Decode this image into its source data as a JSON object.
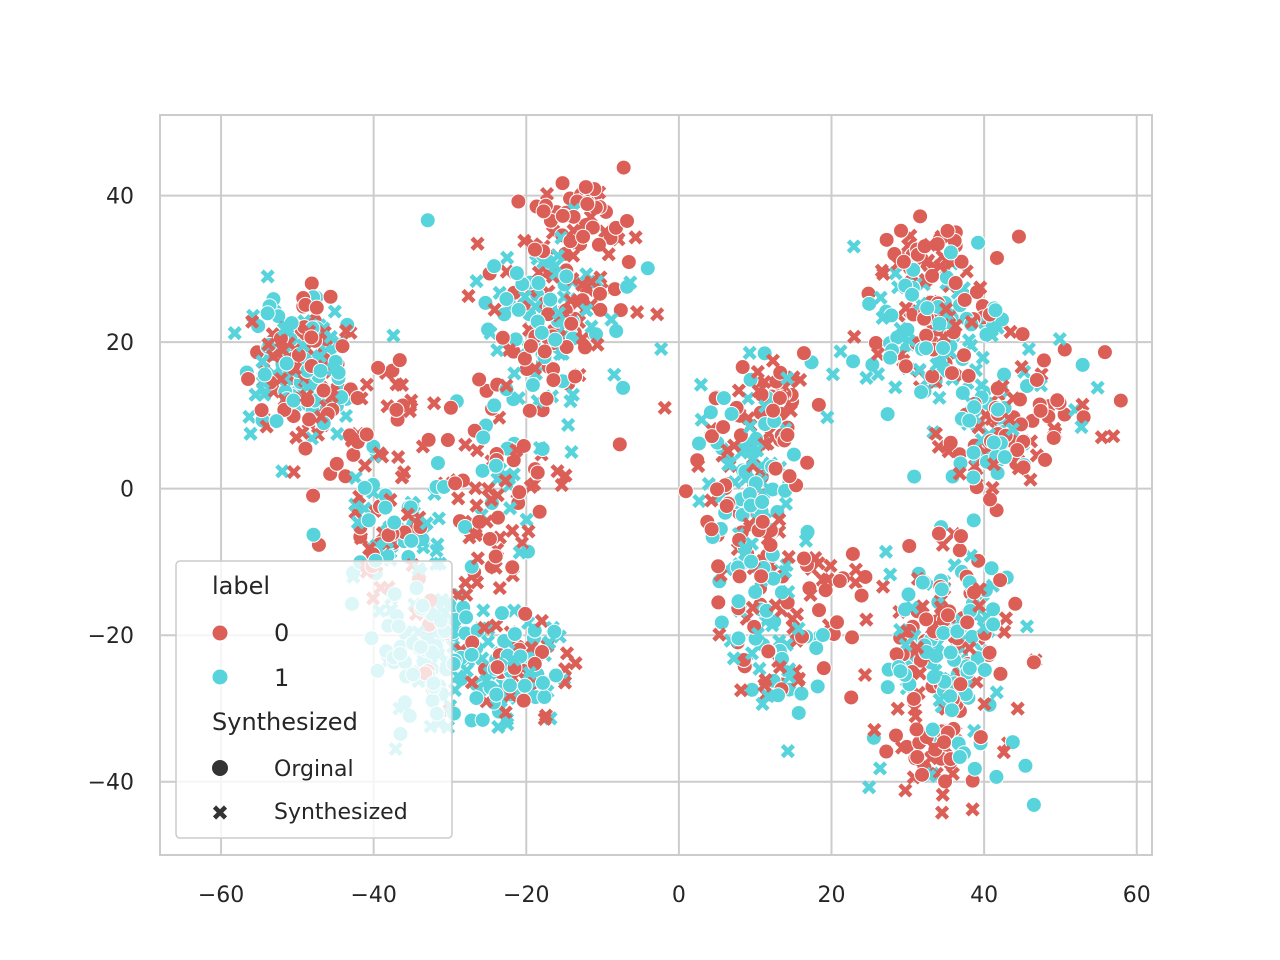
{
  "chart_data": {
    "type": "scatter",
    "title": "",
    "xlabel": "",
    "ylabel": "",
    "xlim": [
      -68,
      62
    ],
    "ylim": [
      -50,
      51
    ],
    "xticks": [
      -60,
      -40,
      -20,
      0,
      20,
      40,
      60
    ],
    "yticks": [
      -40,
      -20,
      0,
      20,
      40
    ],
    "xtick_labels": [
      "−60",
      "−40",
      "−20",
      "0",
      "20",
      "40",
      "60"
    ],
    "ytick_labels": [
      "−40",
      "−20",
      "0",
      "20",
      "40"
    ],
    "grid": true,
    "legend": {
      "placement": "lower-left",
      "hue_title": "label",
      "hue_entries": [
        {
          "label": "0",
          "color": "#db5f57"
        },
        {
          "label": "1",
          "color": "#57d3db"
        }
      ],
      "style_title": "Synthesized",
      "style_entries": [
        {
          "label": "Orginal",
          "marker": "circle"
        },
        {
          "label": "Synthesized",
          "marker": "x"
        }
      ]
    },
    "colors": {
      "0": "#db5f57",
      "1": "#57d3db"
    },
    "clusters": [
      {
        "cx": -50,
        "cy": 17,
        "sx": 3.2,
        "sy": 4.5,
        "n": 180,
        "p1": 0.6
      },
      {
        "cx": -42,
        "cy": 9,
        "sx": 5.0,
        "sy": 7.0,
        "n": 70,
        "p1": 0.2
      },
      {
        "cx": -38,
        "cy": -6,
        "sx": 4.0,
        "sy": 4.0,
        "n": 90,
        "p1": 0.6
      },
      {
        "cx": -33,
        "cy": -22,
        "sx": 3.5,
        "sy": 4.5,
        "n": 110,
        "p1": 0.9
      },
      {
        "cx": -22,
        "cy": -25,
        "sx": 4.0,
        "sy": 4.0,
        "n": 110,
        "p1": 0.65
      },
      {
        "cx": -16,
        "cy": 24,
        "sx": 5.0,
        "sy": 6.0,
        "n": 170,
        "p1": 0.55
      },
      {
        "cx": -12,
        "cy": 37,
        "sx": 3.0,
        "sy": 2.5,
        "n": 50,
        "p1": 0.05
      },
      {
        "cx": -22,
        "cy": 4,
        "sx": 4.0,
        "sy": 6.0,
        "n": 60,
        "p1": 0.2
      },
      {
        "cx": -27,
        "cy": -7,
        "sx": 4.0,
        "sy": 6.0,
        "n": 40,
        "p1": 0.2
      },
      {
        "cx": 9,
        "cy": -3,
        "sx": 3.5,
        "sy": 9.0,
        "n": 160,
        "p1": 0.55
      },
      {
        "cx": 14,
        "cy": -22,
        "sx": 3.0,
        "sy": 4.5,
        "n": 60,
        "p1": 0.5
      },
      {
        "cx": 12,
        "cy": 10,
        "sx": 3.0,
        "sy": 3.5,
        "n": 50,
        "p1": 0.3
      },
      {
        "cx": 33,
        "cy": 22,
        "sx": 5.0,
        "sy": 5.0,
        "n": 150,
        "p1": 0.55
      },
      {
        "cx": 33,
        "cy": 32,
        "sx": 3.5,
        "sy": 2.0,
        "n": 40,
        "p1": 0.05
      },
      {
        "cx": 40,
        "cy": 8,
        "sx": 4.0,
        "sy": 4.5,
        "n": 90,
        "p1": 0.55
      },
      {
        "cx": 49,
        "cy": 11,
        "sx": 3.5,
        "sy": 4.0,
        "n": 40,
        "p1": 0.1
      },
      {
        "cx": 35,
        "cy": -22,
        "sx": 4.5,
        "sy": 7.0,
        "n": 220,
        "p1": 0.6
      },
      {
        "cx": 33,
        "cy": -37,
        "sx": 3.5,
        "sy": 3.0,
        "n": 40,
        "p1": 0.1
      },
      {
        "cx": 20,
        "cy": -14,
        "sx": 2.5,
        "sy": 3.0,
        "n": 20,
        "p1": 0.0
      }
    ]
  }
}
